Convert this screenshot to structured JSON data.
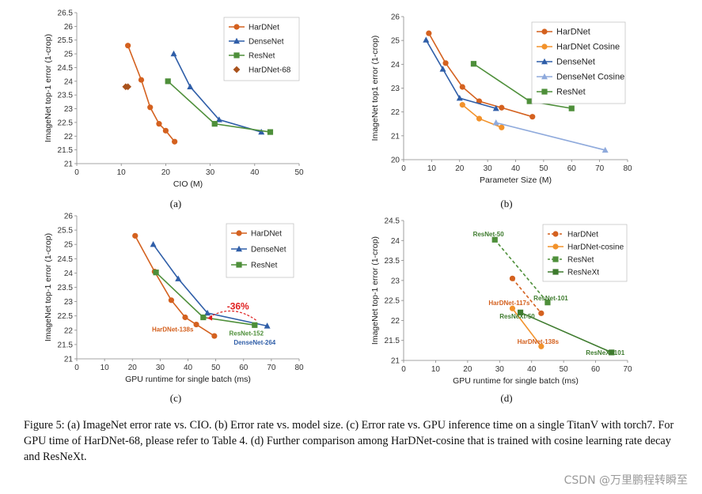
{
  "colors": {
    "hardnet": "#D4611F",
    "hardnet_cosine": "#F2922B",
    "densenet": "#2F5EA8",
    "densenet_cosine": "#8FAADC",
    "resnet": "#4E8F3A",
    "resnext": "#3E7B2E",
    "hardnet68": "#A9521C",
    "annot_red": "#E02020",
    "axis": "#888888"
  },
  "chart_data": [
    {
      "type": "line",
      "panel": "(a)",
      "xlabel": "CIO (M)",
      "ylabel": "ImageNet top-1 error (1-crop)",
      "xlim": [
        0,
        50
      ],
      "ylim": [
        21,
        26.5
      ],
      "xticks": [
        0,
        10,
        20,
        30,
        40,
        50
      ],
      "yticks": [
        21,
        21.5,
        22,
        22.5,
        23,
        23.5,
        24,
        24.5,
        25,
        25.5,
        26,
        26.5
      ],
      "xtick_labels": [
        "0",
        "10",
        "20",
        "30",
        "40",
        "50"
      ],
      "ytick_labels": [
        "21",
        "21.5",
        "22",
        "22.5",
        "23",
        "23.5",
        "24",
        "24.5",
        "25",
        "25.5",
        "26",
        "26.5"
      ],
      "legend": "top-right",
      "series": [
        {
          "name": "HarDNet",
          "color": "#D4611F",
          "marker": "circle",
          "x": [
            11.5,
            14.5,
            16.5,
            18.5,
            20,
            22
          ],
          "y": [
            25.3,
            24.05,
            23.05,
            22.45,
            22.2,
            21.8
          ]
        },
        {
          "name": "DenseNet",
          "color": "#2F5EA8",
          "marker": "triangle",
          "x": [
            21.8,
            25.5,
            32,
            41.5
          ],
          "y": [
            25.0,
            23.8,
            22.6,
            22.15
          ]
        },
        {
          "name": "ResNet",
          "color": "#4E8F3A",
          "marker": "square",
          "x": [
            20.5,
            31,
            43.5
          ],
          "y": [
            24.0,
            22.45,
            22.15
          ]
        },
        {
          "name": "HarDNet-68",
          "color": "#A9521C",
          "marker": "diamond",
          "line": false,
          "x": [
            11,
            11.5
          ],
          "y": [
            23.8,
            23.8
          ]
        }
      ]
    },
    {
      "type": "line",
      "panel": "(b)",
      "xlabel": "Parameter Size (M)",
      "ylabel": "ImageNet top1 error (1-crop)",
      "xlim": [
        0,
        80
      ],
      "ylim": [
        20,
        26
      ],
      "xticks": [
        0,
        10,
        20,
        30,
        40,
        50,
        60,
        70,
        80
      ],
      "yticks": [
        20,
        21,
        22,
        23,
        24,
        25,
        26
      ],
      "xtick_labels": [
        "0",
        "10",
        "20",
        "30",
        "40",
        "50",
        "60",
        "70",
        "80"
      ],
      "ytick_labels": [
        "20",
        "21",
        "22",
        "23",
        "24",
        "25",
        "26"
      ],
      "legend": "top-right",
      "series": [
        {
          "name": "HarDNet",
          "color": "#D4611F",
          "marker": "circle",
          "x": [
            9,
            15,
            21,
            27,
            35,
            46
          ],
          "y": [
            25.3,
            24.05,
            23.05,
            22.45,
            22.18,
            21.8
          ]
        },
        {
          "name": "HarDNet Cosine",
          "color": "#F2922B",
          "marker": "circle",
          "x": [
            21,
            27,
            35
          ],
          "y": [
            22.3,
            21.72,
            21.35
          ]
        },
        {
          "name": "DenseNet",
          "color": "#2F5EA8",
          "marker": "triangle",
          "x": [
            8,
            14,
            20,
            33
          ],
          "y": [
            25.02,
            23.8,
            22.58,
            22.15
          ]
        },
        {
          "name": "DenseNet Cosine",
          "color": "#8FAADC",
          "marker": "triangle",
          "x": [
            33,
            72
          ],
          "y": [
            21.55,
            20.4
          ]
        },
        {
          "name": "ResNet",
          "color": "#4E8F3A",
          "marker": "square",
          "x": [
            25,
            45,
            60
          ],
          "y": [
            24.02,
            22.45,
            22.15
          ]
        }
      ]
    },
    {
      "type": "line",
      "panel": "(c)",
      "xlabel": "GPU runtime for single batch (ms)",
      "ylabel": "ImageNet top-1 error (1-crop)",
      "xlim": [
        0,
        80
      ],
      "ylim": [
        21,
        26
      ],
      "xticks": [
        0,
        10,
        20,
        30,
        40,
        50,
        60,
        70,
        80
      ],
      "yticks": [
        21,
        21.5,
        22,
        22.5,
        23,
        23.5,
        24,
        24.5,
        25,
        25.5,
        26
      ],
      "xtick_labels": [
        "0",
        "10",
        "20",
        "30",
        "40",
        "50",
        "60",
        "70",
        "80"
      ],
      "ytick_labels": [
        "21",
        "21.5",
        "22",
        "22.5",
        "23",
        "23.5",
        "24",
        "24.5",
        "25",
        "25.5",
        "26"
      ],
      "legend": "top-right",
      "series": [
        {
          "name": "HarDNet",
          "color": "#D4611F",
          "marker": "circle",
          "x": [
            21,
            28,
            34,
            39,
            43,
            49.5
          ],
          "y": [
            25.3,
            24.05,
            23.05,
            22.45,
            22.2,
            21.8
          ]
        },
        {
          "name": "DenseNet",
          "color": "#2F5EA8",
          "marker": "triangle",
          "x": [
            27.5,
            36.5,
            47,
            68.5
          ],
          "y": [
            25.0,
            23.8,
            22.6,
            22.15
          ]
        },
        {
          "name": "ResNet",
          "color": "#4E8F3A",
          "marker": "square",
          "x": [
            28.5,
            45.5,
            64
          ],
          "y": [
            24.02,
            22.45,
            22.18
          ]
        }
      ],
      "annotations": [
        {
          "text": "-36%",
          "x": 58,
          "y": 22.72,
          "color": "#E02020"
        },
        {
          "text": "HarDNet-138s",
          "x": 34.5,
          "y": 21.95,
          "color": "#D4611F"
        },
        {
          "text": "ResNet-152",
          "x": 61,
          "y": 21.82,
          "color": "#4E8F3A"
        },
        {
          "text": "DenseNet-264",
          "x": 64,
          "y": 21.5,
          "color": "#2F5EA8"
        }
      ]
    },
    {
      "type": "line",
      "panel": "(d)",
      "xlabel": "GPU runtime for single batch (ms)",
      "ylabel": "ImageNet top-1 error (1-crop)",
      "xlim": [
        0,
        70
      ],
      "ylim": [
        21,
        24.5
      ],
      "xticks": [
        0,
        10,
        20,
        30,
        40,
        50,
        60,
        70
      ],
      "yticks": [
        21,
        21.5,
        22,
        22.5,
        23,
        23.5,
        24,
        24.5
      ],
      "xtick_labels": [
        "0",
        "10",
        "20",
        "30",
        "40",
        "50",
        "60",
        "70"
      ],
      "ytick_labels": [
        "21",
        "21.5",
        "22",
        "22.5",
        "23",
        "23.5",
        "24",
        "24.5"
      ],
      "legend": "top-right",
      "series": [
        {
          "name": "HarDNet",
          "color": "#D4611F",
          "marker": "circle",
          "dashed": true,
          "x": [
            34,
            43
          ],
          "y": [
            23.05,
            22.18
          ]
        },
        {
          "name": "HarDNet-cosine",
          "color": "#F2922B",
          "marker": "circle",
          "x": [
            34,
            43
          ],
          "y": [
            22.3,
            21.35
          ]
        },
        {
          "name": "ResNet",
          "color": "#4E8F3A",
          "marker": "square",
          "dashed": true,
          "x": [
            28.5,
            45
          ],
          "y": [
            24.02,
            22.45
          ]
        },
        {
          "name": "ResNeXt",
          "color": "#3E7B2E",
          "marker": "square",
          "x": [
            36.5,
            65
          ],
          "y": [
            22.2,
            21.2
          ]
        }
      ],
      "annotations": [
        {
          "text": "ResNet-50",
          "x": 26.5,
          "y": 24.1,
          "color": "#3E7B2E"
        },
        {
          "text": "ResNet-101",
          "x": 46,
          "y": 22.5,
          "color": "#3E7B2E"
        },
        {
          "text": "HarDNet-117s",
          "x": 33,
          "y": 22.38,
          "color": "#D4611F"
        },
        {
          "text": "ResNeXt-50",
          "x": 35.5,
          "y": 22.05,
          "color": "#3E7B2E"
        },
        {
          "text": "HarDNet-138s",
          "x": 42,
          "y": 21.42,
          "color": "#D4611F"
        },
        {
          "text": "ResNeXt-101",
          "x": 63,
          "y": 21.14,
          "color": "#3E7B2E"
        }
      ]
    }
  ],
  "caption": "Figure 5: (a) ImageNet error rate vs. CIO. (b) Error rate vs. model size. (c) Error rate vs. GPU inference time on a single TitanV with torch7. For GPU time of HarDNet-68, please refer to Table 4. (d) Further comparison among HarDNet-cosine that is trained with cosine learning rate decay and ResNeXt.",
  "watermark": "CSDN @万里鹏程转瞬至"
}
